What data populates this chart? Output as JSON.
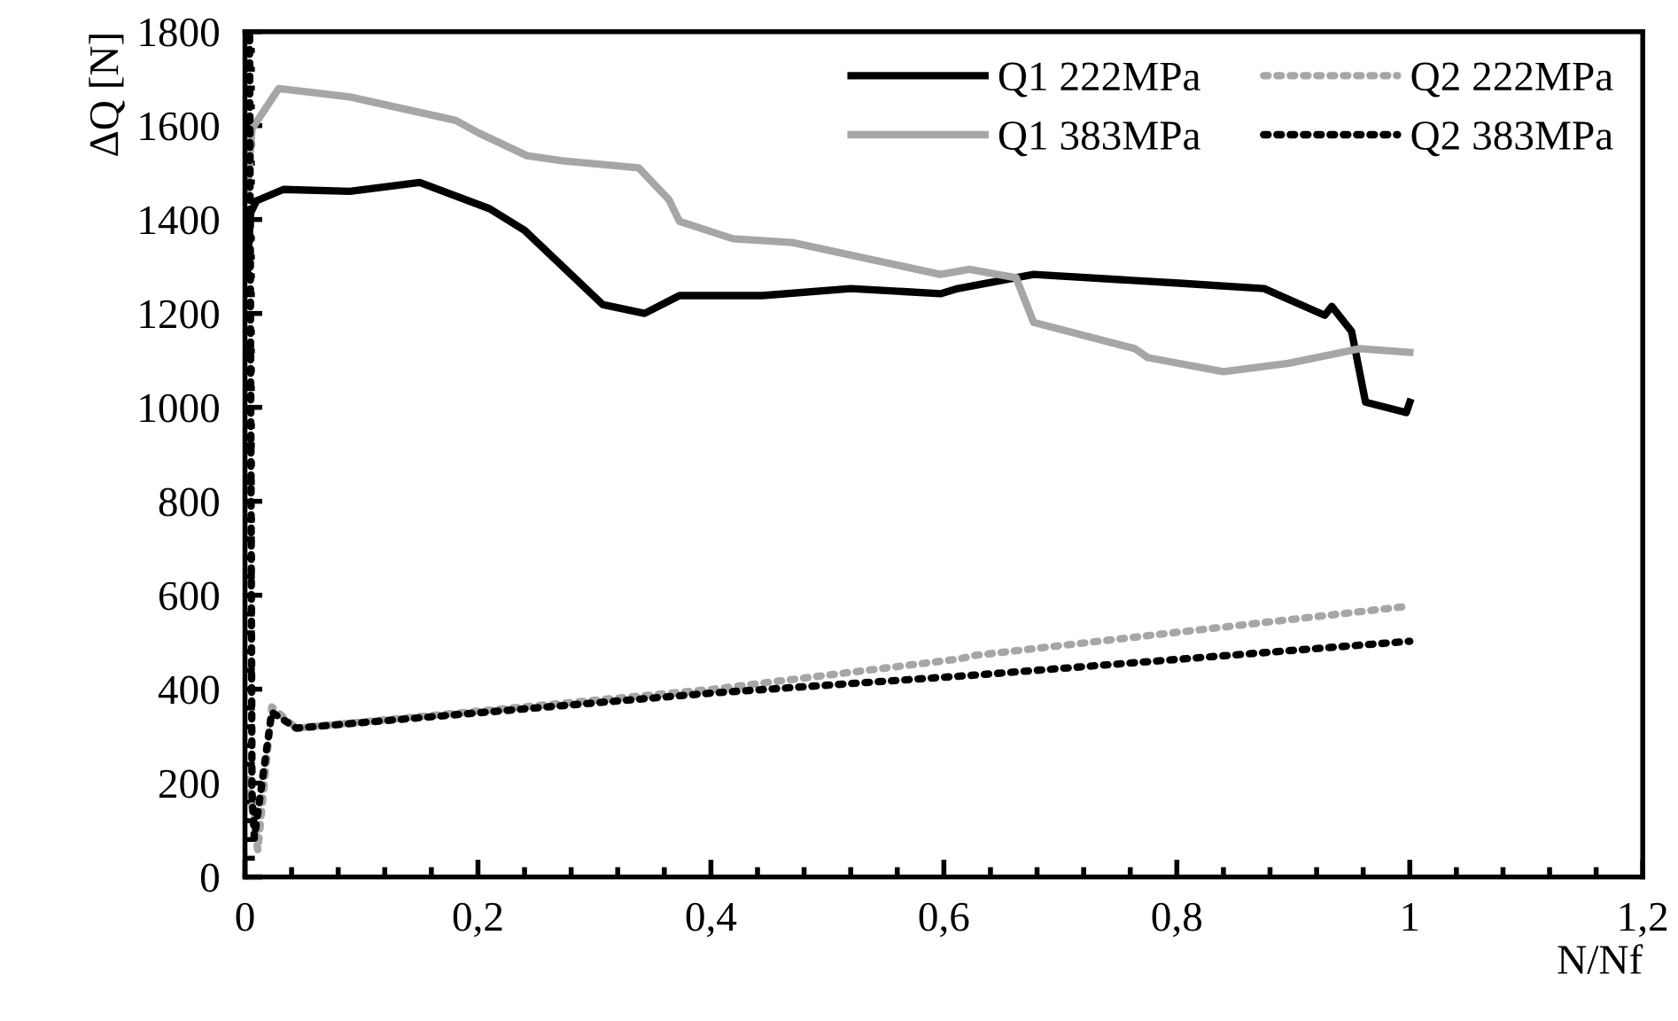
{
  "chart_data": {
    "type": "line",
    "xlabel": "N/Nf",
    "ylabel": "ΔQ [N]",
    "xlim": [
      0,
      1.2
    ],
    "ylim": [
      0,
      1800
    ],
    "xticks": [
      0,
      {
        "value": 0.2,
        "label": "0,2"
      },
      {
        "value": 0.4,
        "label": "0,4"
      },
      {
        "value": 0.6,
        "label": "0,6"
      },
      {
        "value": 0.8,
        "label": "0,8"
      },
      1,
      {
        "value": 1.2,
        "label": "1,2"
      }
    ],
    "yticks": [
      0,
      200,
      400,
      600,
      800,
      1000,
      1200,
      1400,
      1600,
      1800
    ],
    "grid": false,
    "legend": "top right",
    "marker": "none",
    "series": [
      {
        "name": "Q1 222MPa",
        "color": "#000000",
        "line_style": "solid",
        "x": [
          0.002,
          0.003,
          0.005,
          0.01,
          0.033,
          0.09,
          0.15,
          0.21,
          0.24,
          0.307,
          0.343,
          0.373,
          0.444,
          0.52,
          0.597,
          0.612,
          0.677,
          0.805,
          0.875,
          0.927,
          0.933,
          0.95,
          0.962,
          0.997,
          1.0
        ],
        "values": [
          1280,
          1340,
          1415,
          1440,
          1464,
          1460,
          1479,
          1423,
          1377,
          1219,
          1200,
          1238,
          1238,
          1253,
          1242,
          1253,
          1283,
          1264,
          1253,
          1196,
          1215,
          1162,
          1011,
          989,
          1011
        ]
      },
      {
        "name": "Q1 383MPa",
        "color": "#a6a6a6",
        "line_style": "solid",
        "x": [
          0.002,
          0.006,
          0.029,
          0.09,
          0.181,
          0.2,
          0.242,
          0.272,
          0.338,
          0.364,
          0.373,
          0.419,
          0.47,
          0.597,
          0.622,
          0.662,
          0.677,
          0.764,
          0.775,
          0.84,
          0.896,
          0.957,
          1.0
        ],
        "values": [
          1450,
          1593,
          1679,
          1661,
          1611,
          1585,
          1536,
          1525,
          1510,
          1442,
          1396,
          1359,
          1351,
          1283,
          1294,
          1276,
          1181,
          1125,
          1106,
          1076,
          1094,
          1125,
          1117
        ]
      },
      {
        "name": "Q2 222MPa",
        "color": "#a6a6a6",
        "line_style": "dotted",
        "x": [
          0.003,
          0.011,
          0.023,
          0.044,
          0.402,
          0.612,
          0.627,
          0.8,
          1.0
        ],
        "values": [
          208,
          57,
          362,
          317,
          400,
          464,
          472,
          521,
          577
        ]
      },
      {
        "name": "Q2 383MPa",
        "color": "#000000",
        "line_style": "dotted",
        "x": [
          0.004,
          0.006,
          0.008,
          0.023,
          0.044,
          0.402,
          0.627,
          1.0
        ],
        "values": [
          1790,
          183,
          83,
          351,
          317,
          392,
          430,
          502
        ]
      }
    ]
  }
}
